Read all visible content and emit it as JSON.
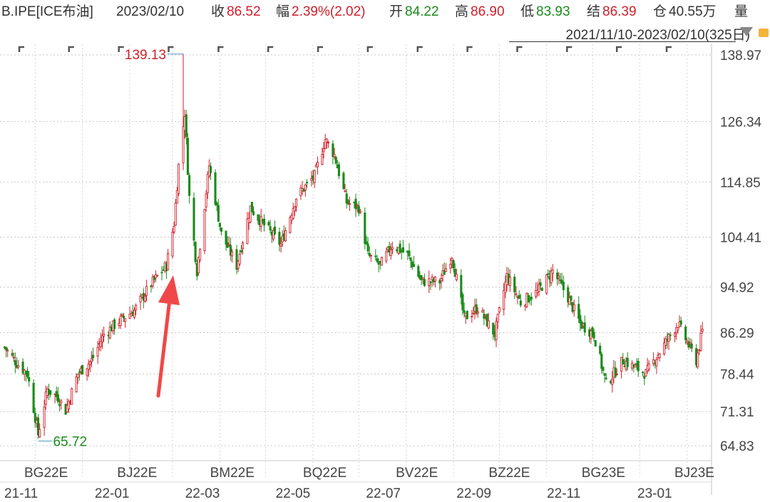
{
  "header": {
    "symbol": "B.IPE[ICE布油]",
    "date": "2023/02/10",
    "close_label": "收",
    "close_value": "86.52",
    "change_label": "幅",
    "change_value": "2.39%(2.02)",
    "open_label": "开",
    "open_value": "84.22",
    "high_label": "高",
    "high_value": "86.90",
    "low_label": "低",
    "low_value": "83.93",
    "settle_label": "结",
    "settle_value": "86.39",
    "oi_label": "仓",
    "oi_value": "40.55万",
    "volume_label": "量"
  },
  "range_text": "2021/11/10-2023/02/10(325日)",
  "colors": {
    "up": "#d0202a",
    "down": "#1a8a1a",
    "grid": "#c8c8c8",
    "arrow": "#f04848",
    "label": "#444444"
  },
  "chart_data": {
    "type": "candlestick",
    "ylim": [
      62.0,
      141.0
    ],
    "y_ticks": [
      "138.97",
      "126.34",
      "114.85",
      "104.41",
      "94.92",
      "86.29",
      "78.44",
      "71.31",
      "64.83"
    ],
    "contract_labels": [
      "BG22E",
      "BJ22E",
      "BM22E",
      "BQ22E",
      "BV22E",
      "BZ22E",
      "BG23E",
      "BJ23E"
    ],
    "date_labels": [
      "21-11",
      "22-01",
      "22-03",
      "22-05",
      "22-07",
      "22-09",
      "22-11",
      "23-01"
    ],
    "max_annotation": {
      "text": "139.13",
      "date": "2022-03-07",
      "value": 139.13
    },
    "min_annotation": {
      "text": "65.72",
      "date": "2021-12-02",
      "value": 65.72
    },
    "price_path": [
      [
        "2021-11-10",
        83.5
      ],
      [
        "2021-11-18",
        80.5
      ],
      [
        "2021-11-25",
        78.5
      ],
      [
        "2021-12-02",
        67.0
      ],
      [
        "2021-12-08",
        75.5
      ],
      [
        "2021-12-15",
        74.0
      ],
      [
        "2021-12-20",
        71.5
      ],
      [
        "2021-12-28",
        78.5
      ],
      [
        "2022-01-06",
        81.0
      ],
      [
        "2022-01-14",
        86.0
      ],
      [
        "2022-01-24",
        88.5
      ],
      [
        "2022-02-03",
        90.5
      ],
      [
        "2022-02-14",
        95.5
      ],
      [
        "2022-02-24",
        99.0
      ],
      [
        "2022-03-01",
        107.0
      ],
      [
        "2022-03-04",
        118.0
      ],
      [
        "2022-03-08",
        128.0
      ],
      [
        "2022-03-11",
        112.0
      ],
      [
        "2022-03-16",
        98.0
      ],
      [
        "2022-03-24",
        118.0
      ],
      [
        "2022-04-01",
        105.0
      ],
      [
        "2022-04-11",
        99.0
      ],
      [
        "2022-04-20",
        110.0
      ],
      [
        "2022-04-28",
        107.0
      ],
      [
        "2022-05-10",
        103.0
      ],
      [
        "2022-05-20",
        112.0
      ],
      [
        "2022-06-01",
        116.0
      ],
      [
        "2022-06-08",
        123.0
      ],
      [
        "2022-06-14",
        120.0
      ],
      [
        "2022-06-22",
        111.0
      ],
      [
        "2022-06-30",
        110.0
      ],
      [
        "2022-07-06",
        101.0
      ],
      [
        "2022-07-14",
        99.0
      ],
      [
        "2022-07-22",
        103.0
      ],
      [
        "2022-08-01",
        101.0
      ],
      [
        "2022-08-10",
        96.0
      ],
      [
        "2022-08-22",
        96.0
      ],
      [
        "2022-08-30",
        101.0
      ],
      [
        "2022-09-07",
        89.0
      ],
      [
        "2022-09-16",
        91.0
      ],
      [
        "2022-09-27",
        86.0
      ],
      [
        "2022-10-05",
        97.0
      ],
      [
        "2022-10-14",
        92.0
      ],
      [
        "2022-10-25",
        94.0
      ],
      [
        "2022-11-04",
        98.0
      ],
      [
        "2022-11-14",
        93.0
      ],
      [
        "2022-11-22",
        88.0
      ],
      [
        "2022-12-01",
        86.0
      ],
      [
        "2022-12-09",
        76.5
      ],
      [
        "2022-12-20",
        81.0
      ],
      [
        "2023-01-04",
        78.5
      ],
      [
        "2023-01-16",
        84.0
      ],
      [
        "2023-01-25",
        88.0
      ],
      [
        "2023-02-06",
        81.0
      ],
      [
        "2023-02-10",
        86.5
      ]
    ]
  }
}
